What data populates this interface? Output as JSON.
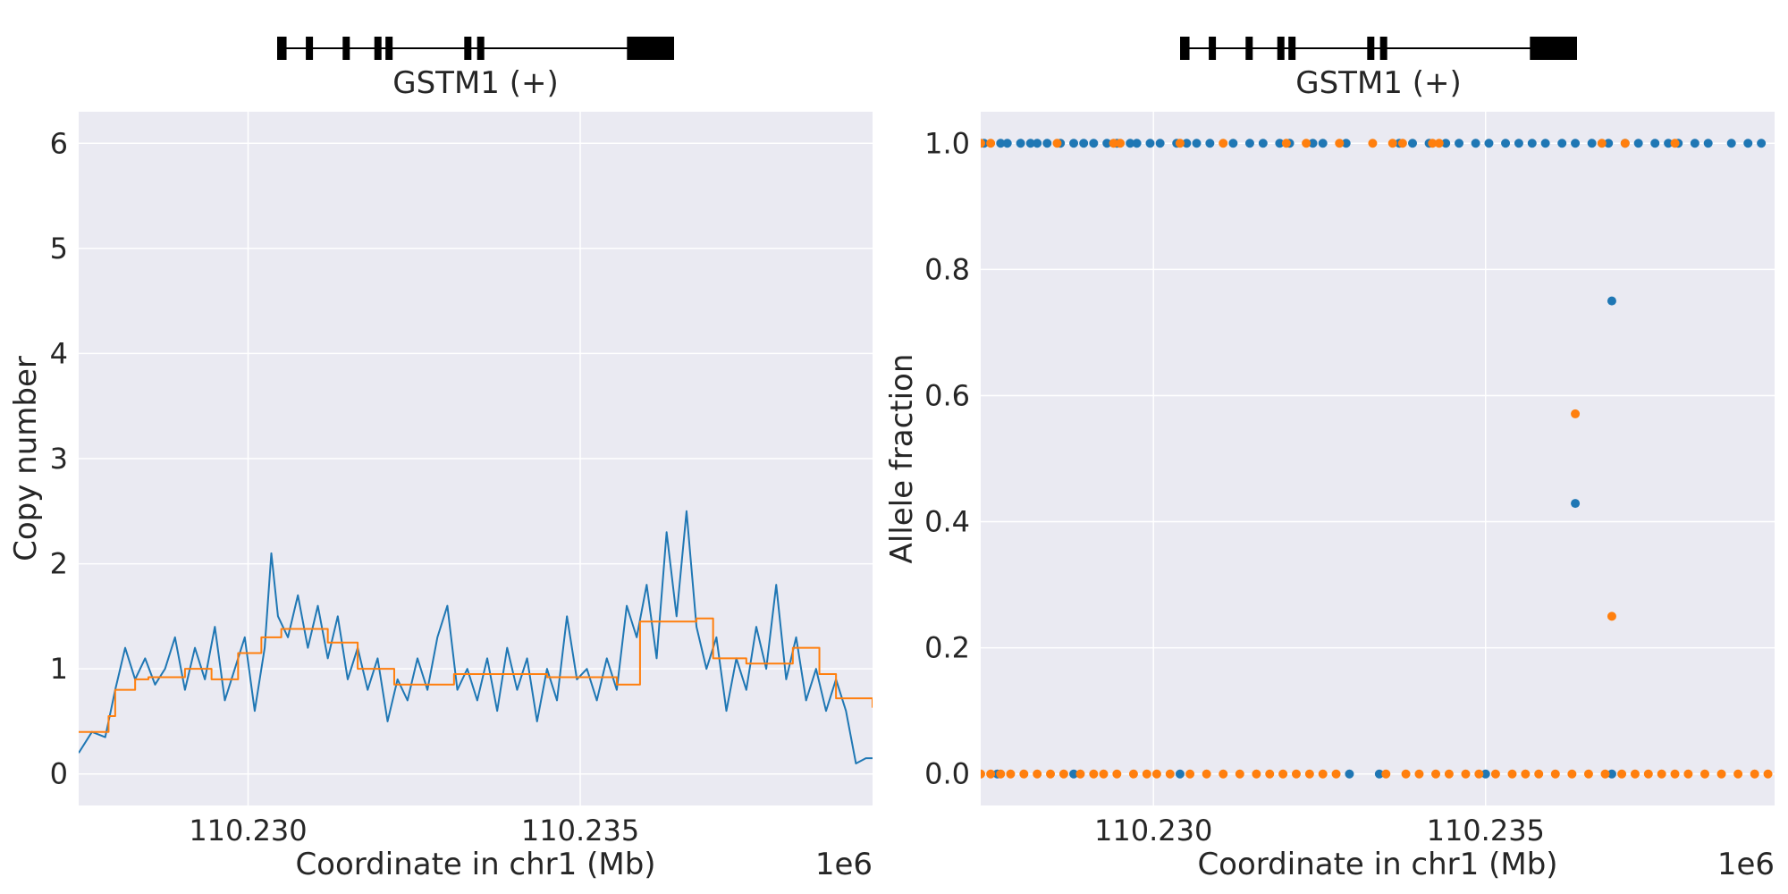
{
  "chart_data": [
    {
      "type": "line",
      "gene_track": {
        "label": "GSTM1 (+)",
        "exons": [
          [
            110226165,
            110226275
          ],
          [
            110226500,
            110226560
          ],
          [
            110226930,
            110226990
          ],
          [
            110227300,
            110227380
          ],
          [
            110227430,
            110227510
          ],
          [
            110228350,
            110228430
          ],
          [
            110228500,
            110228580
          ],
          [
            110230250,
            110230800
          ]
        ],
        "intron_span": [
          110226165,
          110230800
        ]
      },
      "xlabel": "Coordinate in chr1 (Mb)",
      "ylabel": "Copy number",
      "x_offset_label": "1e6",
      "xlim": [
        110227450,
        110239400
      ],
      "ylim": [
        -0.3,
        6.3
      ],
      "xticks": [
        110230000,
        110235000
      ],
      "xtick_labels": [
        "110.230",
        "110.235"
      ],
      "yticks": [
        0,
        1,
        2,
        3,
        4,
        5,
        6
      ],
      "ytick_labels": [
        "0",
        "1",
        "2",
        "3",
        "4",
        "5",
        "6"
      ],
      "grid": true,
      "series": [
        {
          "color": "#1f77b4",
          "x": [
            110227450,
            110227650,
            110227850,
            110228000,
            110228150,
            110228300,
            110228450,
            110228600,
            110228750,
            110228900,
            110229050,
            110229200,
            110229350,
            110229500,
            110229650,
            110229800,
            110229950,
            110230100,
            110230250,
            110230350,
            110230450,
            110230600,
            110230750,
            110230900,
            110231050,
            110231200,
            110231350,
            110231500,
            110231650,
            110231800,
            110231950,
            110232100,
            110232250,
            110232400,
            110232550,
            110232700,
            110232850,
            110233000,
            110233150,
            110233300,
            110233450,
            110233600,
            110233750,
            110233900,
            110234050,
            110234200,
            110234350,
            110234500,
            110234650,
            110234800,
            110234950,
            110235100,
            110235250,
            110235400,
            110235550,
            110235700,
            110235850,
            110236000,
            110236150,
            110236300,
            110236450,
            110236600,
            110236750,
            110236900,
            110237050,
            110237200,
            110237350,
            110237500,
            110237650,
            110237800,
            110237950,
            110238100,
            110238250,
            110238400,
            110238550,
            110238700,
            110238850,
            110239000,
            110239150,
            110239300,
            110239400
          ],
          "values": [
            0.2,
            0.4,
            0.35,
            0.8,
            1.2,
            0.9,
            1.1,
            0.85,
            1.0,
            1.3,
            0.8,
            1.2,
            0.9,
            1.4,
            0.7,
            1.0,
            1.3,
            0.6,
            1.2,
            2.1,
            1.5,
            1.3,
            1.7,
            1.2,
            1.6,
            1.1,
            1.5,
            0.9,
            1.2,
            0.8,
            1.1,
            0.5,
            0.9,
            0.7,
            1.1,
            0.8,
            1.3,
            1.6,
            0.8,
            1.0,
            0.7,
            1.1,
            0.6,
            1.2,
            0.8,
            1.1,
            0.5,
            1.0,
            0.7,
            1.5,
            0.9,
            1.0,
            0.7,
            1.1,
            0.8,
            1.6,
            1.3,
            1.8,
            1.1,
            2.3,
            1.5,
            2.5,
            1.4,
            1.0,
            1.3,
            0.6,
            1.1,
            0.8,
            1.4,
            1.0,
            1.8,
            0.9,
            1.3,
            0.7,
            1.0,
            0.6,
            0.9,
            0.6,
            0.1,
            0.15,
            0.15
          ]
        },
        {
          "color": "#ff7f0e",
          "step": true,
          "x": [
            110227450,
            110227900,
            110228000,
            110228300,
            110228500,
            110229050,
            110229450,
            110229850,
            110230200,
            110230500,
            110231200,
            110231650,
            110232200,
            110233100,
            110233850,
            110234500,
            110235550,
            110235900,
            110236750,
            110237000,
            110237500,
            110238200,
            110238600,
            110238850,
            110239400
          ],
          "values": [
            0.4,
            0.55,
            0.8,
            0.9,
            0.92,
            1.0,
            0.9,
            1.15,
            1.3,
            1.38,
            1.25,
            1.0,
            0.85,
            0.95,
            0.95,
            0.92,
            0.85,
            1.45,
            1.48,
            1.1,
            1.05,
            1.2,
            0.95,
            0.72,
            0.63
          ]
        }
      ]
    },
    {
      "type": "scatter",
      "gene_track": {
        "label": "GSTM1 (+)",
        "exons": [
          [
            110226165,
            110226275
          ],
          [
            110226500,
            110226560
          ],
          [
            110226930,
            110226990
          ],
          [
            110227300,
            110227380
          ],
          [
            110227430,
            110227510
          ],
          [
            110228350,
            110228430
          ],
          [
            110228500,
            110228580
          ],
          [
            110230250,
            110230800
          ]
        ],
        "intron_span": [
          110226165,
          110230800
        ]
      },
      "xlabel": "Coordinate in chr1 (Mb)",
      "ylabel": "Allele fraction",
      "x_offset_label": "1e6",
      "xlim": [
        110227400,
        110239350
      ],
      "ylim": [
        -0.05,
        1.05
      ],
      "xticks": [
        110230000,
        110235000
      ],
      "xtick_labels": [
        "110.230",
        "110.235"
      ],
      "yticks": [
        0.0,
        0.2,
        0.4,
        0.6,
        0.8,
        1.0
      ],
      "ytick_labels": [
        "0.0",
        "0.2",
        "0.4",
        "0.6",
        "0.8",
        "1.0"
      ],
      "grid": true,
      "series": [
        {
          "color": "#1f77b4",
          "points": [
            [
              110227450,
              1.0
            ],
            [
              110227700,
              1.0
            ],
            [
              110227800,
              1.0
            ],
            [
              110228000,
              1.0
            ],
            [
              110228150,
              1.0
            ],
            [
              110228250,
              1.0
            ],
            [
              110228400,
              1.0
            ],
            [
              110228600,
              1.0
            ],
            [
              110228800,
              1.0
            ],
            [
              110228950,
              1.0
            ],
            [
              110229100,
              1.0
            ],
            [
              110229300,
              1.0
            ],
            [
              110229450,
              1.0
            ],
            [
              110229650,
              1.0
            ],
            [
              110229750,
              1.0
            ],
            [
              110229950,
              1.0
            ],
            [
              110230100,
              1.0
            ],
            [
              110230350,
              1.0
            ],
            [
              110230500,
              1.0
            ],
            [
              110230650,
              1.0
            ],
            [
              110230850,
              1.0
            ],
            [
              110231200,
              1.0
            ],
            [
              110231450,
              1.0
            ],
            [
              110231650,
              1.0
            ],
            [
              110231900,
              1.0
            ],
            [
              110232050,
              1.0
            ],
            [
              110232400,
              1.0
            ],
            [
              110232550,
              1.0
            ],
            [
              110232900,
              1.0
            ],
            [
              110233700,
              1.0
            ],
            [
              110233900,
              1.0
            ],
            [
              110234150,
              1.0
            ],
            [
              110234400,
              1.0
            ],
            [
              110234600,
              1.0
            ],
            [
              110234850,
              1.0
            ],
            [
              110235050,
              1.0
            ],
            [
              110235300,
              1.0
            ],
            [
              110235500,
              1.0
            ],
            [
              110235700,
              1.0
            ],
            [
              110235900,
              1.0
            ],
            [
              110236150,
              1.0
            ],
            [
              110236350,
              1.0
            ],
            [
              110236600,
              1.0
            ],
            [
              110236850,
              1.0
            ],
            [
              110237100,
              1.0
            ],
            [
              110237300,
              1.0
            ],
            [
              110237550,
              1.0
            ],
            [
              110237750,
              1.0
            ],
            [
              110237900,
              1.0
            ],
            [
              110238150,
              1.0
            ],
            [
              110238350,
              1.0
            ],
            [
              110238700,
              1.0
            ],
            [
              110238950,
              1.0
            ],
            [
              110239150,
              1.0
            ],
            [
              110236350,
              0.429
            ],
            [
              110236900,
              0.75
            ],
            [
              110230400,
              0.0
            ],
            [
              110232950,
              0.0
            ],
            [
              110233400,
              0.0
            ],
            [
              110235000,
              0.0
            ],
            [
              110236900,
              0.0
            ],
            [
              110227650,
              0.0
            ],
            [
              110228800,
              0.0
            ]
          ]
        },
        {
          "color": "#ff7f0e",
          "points": [
            [
              110227400,
              1.0
            ],
            [
              110227550,
              1.0
            ],
            [
              110228550,
              1.0
            ],
            [
              110229400,
              1.0
            ],
            [
              110229500,
              1.0
            ],
            [
              110230400,
              1.0
            ],
            [
              110231050,
              1.0
            ],
            [
              110232000,
              1.0
            ],
            [
              110232300,
              1.0
            ],
            [
              110232800,
              1.0
            ],
            [
              110233300,
              1.0
            ],
            [
              110233600,
              1.0
            ],
            [
              110233750,
              1.0
            ],
            [
              110234200,
              1.0
            ],
            [
              110234300,
              1.0
            ],
            [
              110236750,
              1.0
            ],
            [
              110237100,
              1.0
            ],
            [
              110237850,
              1.0
            ],
            [
              110236350,
              0.571
            ],
            [
              110236900,
              0.25
            ],
            [
              110227400,
              0.0
            ],
            [
              110227550,
              0.0
            ],
            [
              110227700,
              0.0
            ],
            [
              110227850,
              0.0
            ],
            [
              110228050,
              0.0
            ],
            [
              110228250,
              0.0
            ],
            [
              110228450,
              0.0
            ],
            [
              110228650,
              0.0
            ],
            [
              110228900,
              0.0
            ],
            [
              110229100,
              0.0
            ],
            [
              110229250,
              0.0
            ],
            [
              110229450,
              0.0
            ],
            [
              110229700,
              0.0
            ],
            [
              110229900,
              0.0
            ],
            [
              110230050,
              0.0
            ],
            [
              110230250,
              0.0
            ],
            [
              110230550,
              0.0
            ],
            [
              110230800,
              0.0
            ],
            [
              110231050,
              0.0
            ],
            [
              110231300,
              0.0
            ],
            [
              110231550,
              0.0
            ],
            [
              110231750,
              0.0
            ],
            [
              110231950,
              0.0
            ],
            [
              110232150,
              0.0
            ],
            [
              110232350,
              0.0
            ],
            [
              110232550,
              0.0
            ],
            [
              110232750,
              0.0
            ],
            [
              110233500,
              0.0
            ],
            [
              110233800,
              0.0
            ],
            [
              110234000,
              0.0
            ],
            [
              110234250,
              0.0
            ],
            [
              110234450,
              0.0
            ],
            [
              110234700,
              0.0
            ],
            [
              110234900,
              0.0
            ],
            [
              110235150,
              0.0
            ],
            [
              110235400,
              0.0
            ],
            [
              110235600,
              0.0
            ],
            [
              110235800,
              0.0
            ],
            [
              110236050,
              0.0
            ],
            [
              110236300,
              0.0
            ],
            [
              110236550,
              0.0
            ],
            [
              110236800,
              0.0
            ],
            [
              110237050,
              0.0
            ],
            [
              110237250,
              0.0
            ],
            [
              110237450,
              0.0
            ],
            [
              110237650,
              0.0
            ],
            [
              110237850,
              0.0
            ],
            [
              110238050,
              0.0
            ],
            [
              110238300,
              0.0
            ],
            [
              110238550,
              0.0
            ],
            [
              110238800,
              0.0
            ],
            [
              110239050,
              0.0
            ],
            [
              110239250,
              0.0
            ]
          ]
        }
      ]
    }
  ],
  "colors": {
    "axes_bg": "#eaeaf2",
    "grid": "#ffffff",
    "text": "#262626"
  }
}
